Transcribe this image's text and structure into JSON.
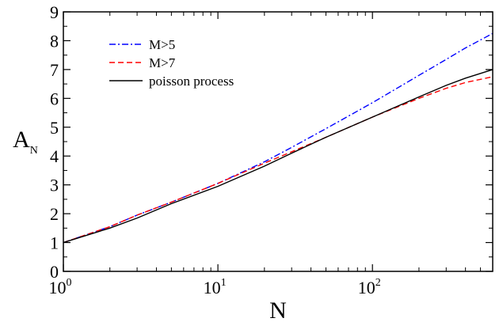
{
  "chart_data": {
    "type": "line",
    "title": "",
    "xlabel": "N",
    "ylabel": {
      "base": "A",
      "subscript": "N"
    },
    "x_scale": "log",
    "xlim": [
      1,
      600
    ],
    "ylim": [
      0,
      9
    ],
    "x_ticks": [
      {
        "value": 1,
        "base": "10",
        "exponent": "0"
      },
      {
        "value": 10,
        "base": "10",
        "exponent": "1"
      },
      {
        "value": 100,
        "base": "10",
        "exponent": "2"
      }
    ],
    "y_ticks": [
      "0",
      "1",
      "2",
      "3",
      "4",
      "5",
      "6",
      "7",
      "8",
      "9"
    ],
    "grid": false,
    "legend_position": "top-left",
    "series": [
      {
        "name": "M>5",
        "color": "#0000ff",
        "dash": "dash-dot",
        "x": [
          1,
          2,
          3,
          5,
          10,
          20,
          30,
          50,
          100,
          200,
          300,
          400,
          600
        ],
        "y": [
          1.0,
          1.55,
          1.95,
          2.4,
          3.05,
          3.8,
          4.3,
          4.95,
          5.85,
          6.8,
          7.35,
          7.75,
          8.25
        ]
      },
      {
        "name": "M>7",
        "color": "#ff0000",
        "dash": "dashed",
        "x": [
          1,
          2,
          3,
          5,
          10,
          20,
          30,
          50,
          100,
          200,
          300,
          400,
          600
        ],
        "y": [
          1.0,
          1.55,
          1.95,
          2.4,
          3.05,
          3.75,
          4.15,
          4.65,
          5.35,
          6.0,
          6.35,
          6.55,
          6.75
        ]
      },
      {
        "name": "poisson process",
        "color": "#000000",
        "dash": "solid",
        "x": [
          1,
          2,
          3,
          5,
          10,
          20,
          30,
          50,
          100,
          200,
          300,
          400,
          600
        ],
        "y": [
          1.0,
          1.5,
          1.85,
          2.35,
          2.95,
          3.65,
          4.1,
          4.65,
          5.35,
          6.05,
          6.45,
          6.7,
          7.0
        ]
      }
    ]
  }
}
